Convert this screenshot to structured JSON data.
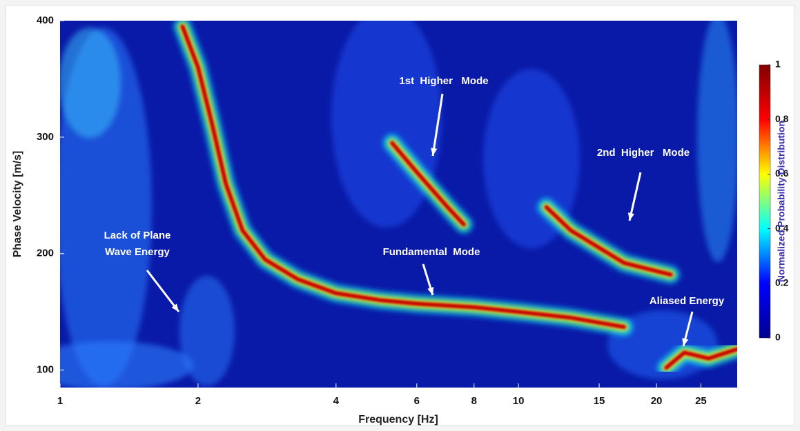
{
  "chart_data": {
    "type": "heatmap",
    "xlabel": "Frequency [Hz]",
    "ylabel": "Phase Velocity [m/s]",
    "xscale": "log",
    "xlim": [
      1,
      30
    ],
    "ylim": [
      85,
      400
    ],
    "xticks": [
      1,
      2,
      4,
      6,
      8,
      10,
      15,
      20,
      25
    ],
    "yticks": [
      100,
      200,
      300,
      400
    ],
    "series": [
      {
        "name": "Fundamental  Mode",
        "x": [
          1.85,
          2,
          2.15,
          2.3,
          2.5,
          2.8,
          3.3,
          4,
          5,
          6,
          8,
          10,
          13,
          17
        ],
        "values": [
          395,
          360,
          310,
          260,
          220,
          195,
          178,
          166,
          160,
          157,
          154,
          150,
          145,
          137
        ]
      },
      {
        "name": "1st  Higher   Mode",
        "x": [
          5.3,
          6,
          7,
          7.6
        ],
        "values": [
          295,
          270,
          240,
          225
        ]
      },
      {
        "name": "2nd  Higher   Mode",
        "x": [
          11.5,
          13,
          15,
          17,
          20,
          21.5
        ],
        "values": [
          240,
          220,
          205,
          192,
          185,
          182
        ]
      },
      {
        "name": "Aliased Energy",
        "x": [
          21,
          23,
          26,
          30
        ],
        "values": [
          102,
          115,
          110,
          118
        ]
      }
    ],
    "annotations": [
      {
        "lines": [
          "Lack of Plane",
          "Wave Energy"
        ]
      }
    ],
    "colorbar": {
      "label": "Normalized Probability Distribution",
      "lim": [
        0,
        1
      ],
      "ticks": [
        0,
        0.2,
        0.4,
        0.6,
        0.8,
        1
      ],
      "colormap": [
        "#00008f",
        "#0000ff",
        "#00ffff",
        "#ffff00",
        "#ff0000",
        "#800000"
      ]
    }
  }
}
